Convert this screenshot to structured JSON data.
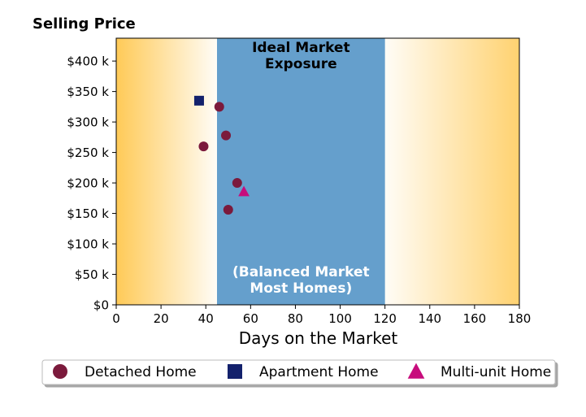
{
  "chart_data": {
    "type": "scatter",
    "title": "Selling Price",
    "xlabel": "Days on the Market",
    "ylabel": "",
    "xlim": [
      0,
      180
    ],
    "ylim": [
      0,
      437500
    ],
    "x_ticks": [
      0,
      20,
      40,
      60,
      80,
      100,
      120,
      140,
      160,
      180
    ],
    "x_tick_labels": [
      "0",
      "20",
      "40",
      "60",
      "80",
      "100",
      "120",
      "140",
      "160",
      "180"
    ],
    "y_ticks": [
      0,
      50000,
      100000,
      150000,
      200000,
      250000,
      300000,
      350000,
      400000
    ],
    "y_tick_labels": [
      "$0",
      "$50 k",
      "$100 k",
      "$150 k",
      "$200 k",
      "$250 k",
      "$300 k",
      "$350 k",
      "$400 k"
    ],
    "grid": false,
    "background": {
      "gradient_color": "#ffca57",
      "band": {
        "x_from": 45,
        "x_to": 120,
        "color": "#659fcc"
      }
    },
    "annotations": [
      {
        "lines": [
          "Ideal Market",
          "Exposure"
        ],
        "color": "#000000",
        "anchor": "top"
      },
      {
        "lines": [
          "(Balanced Market",
          "Most Homes)"
        ],
        "color": "#ffffff",
        "anchor": "bottom"
      }
    ],
    "series": [
      {
        "name": "Detached Home",
        "marker": "circle",
        "color": "#7b1a3c",
        "points": [
          {
            "x": 46,
            "y": 325000
          },
          {
            "x": 49,
            "y": 278000
          },
          {
            "x": 39,
            "y": 260000
          },
          {
            "x": 54,
            "y": 200000
          },
          {
            "x": 50,
            "y": 156000
          }
        ]
      },
      {
        "name": "Apartment Home",
        "marker": "square",
        "color": "#13216c",
        "points": [
          {
            "x": 37,
            "y": 335000
          }
        ]
      },
      {
        "name": "Multi-unit Home",
        "marker": "triangle",
        "color": "#c70c7c",
        "points": [
          {
            "x": 57,
            "y": 186000
          }
        ]
      }
    ],
    "legend": {
      "placement": "bottom",
      "columns": 3
    }
  }
}
